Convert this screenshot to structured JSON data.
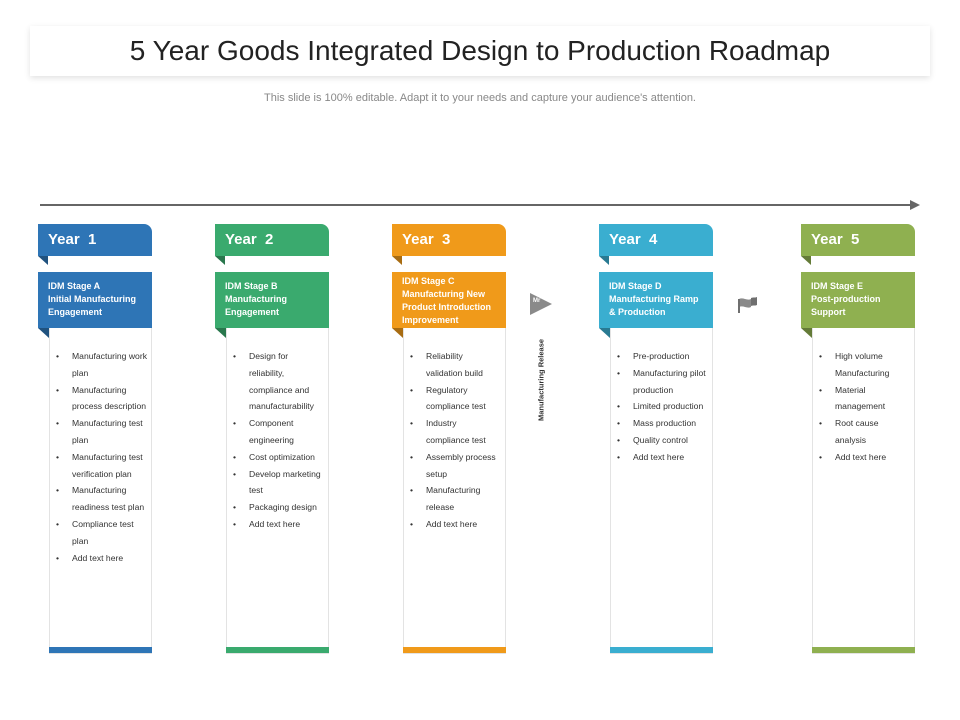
{
  "title": "5 Year Goods Integrated Design to Production Roadmap",
  "subtitle": "This slide is 100% editable. Adapt it to your needs and capture your audience's attention.",
  "marker": {
    "short": "Mr",
    "label": "Manufacturing Release"
  },
  "flag_icon": "flag-icon",
  "columns": [
    {
      "year": "Year  1",
      "stage": "IDM Stage A\nInitial Manufacturing Engagement",
      "color": "#2e75b6",
      "items": [
        "Manufacturing work plan",
        "Manufacturing process description",
        "Manufacturing test plan",
        "Manufacturing test verification plan",
        "Manufacturing readiness test plan",
        "Compliance test plan",
        "Add text here"
      ]
    },
    {
      "year": "Year  2",
      "stage": "IDM Stage B\nManufacturing Engagement",
      "color": "#3aaa6e",
      "items": [
        "Design for reliability, compliance and manufacturability",
        "Component engineering",
        "Cost optimization",
        "Develop marketing test",
        "Packaging design",
        "Add text here"
      ]
    },
    {
      "year": "Year  3",
      "stage": "IDM Stage C\nManufacturing New Product Introduction Improvement",
      "color": "#f09a1a",
      "items": [
        "Reliability validation build",
        "Regulatory compliance test",
        "Industry compliance test",
        "Assembly process setup",
        "Manufacturing release",
        "Add text here"
      ]
    },
    {
      "year": "Year  4",
      "stage": "IDM Stage D\nManufacturing Ramp & Production",
      "color": "#3aaed0",
      "items": [
        "Pre-production",
        "Manufacturing pilot production",
        "Limited production",
        "Mass production",
        "Quality control",
        "Add text here"
      ]
    },
    {
      "year": "Year  5",
      "stage": "IDM Stage E\nPost-production Support",
      "color": "#8fb050",
      "items": [
        "High volume Manufacturing",
        "Material management",
        "Root cause analysis",
        "Add text here"
      ]
    }
  ]
}
